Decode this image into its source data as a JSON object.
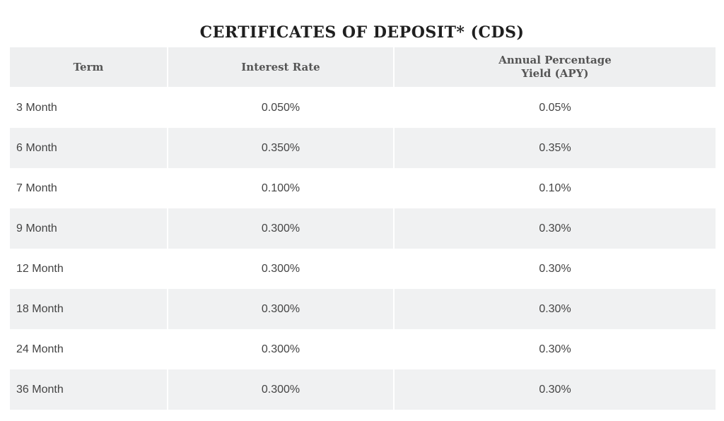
{
  "title": "CERTIFICATES OF DEPOSIT* (CDS)",
  "table": {
    "headers": {
      "term": "Term",
      "interest_rate": "Interest Rate",
      "apy": "Annual Percentage Yield (APY)"
    },
    "rows": [
      {
        "term": "3 Month",
        "interest_rate": "0.050%",
        "apy": "0.05%"
      },
      {
        "term": "6 Month",
        "interest_rate": "0.350%",
        "apy": "0.35%"
      },
      {
        "term": "7 Month",
        "interest_rate": "0.100%",
        "apy": "0.10%"
      },
      {
        "term": "9 Month",
        "interest_rate": "0.300%",
        "apy": "0.30%"
      },
      {
        "term": "12 Month",
        "interest_rate": "0.300%",
        "apy": "0.30%"
      },
      {
        "term": "18 Month",
        "interest_rate": "0.300%",
        "apy": "0.30%"
      },
      {
        "term": "24 Month",
        "interest_rate": "0.300%",
        "apy": "0.30%"
      },
      {
        "term": "36 Month",
        "interest_rate": "0.300%",
        "apy": "0.30%"
      }
    ]
  }
}
